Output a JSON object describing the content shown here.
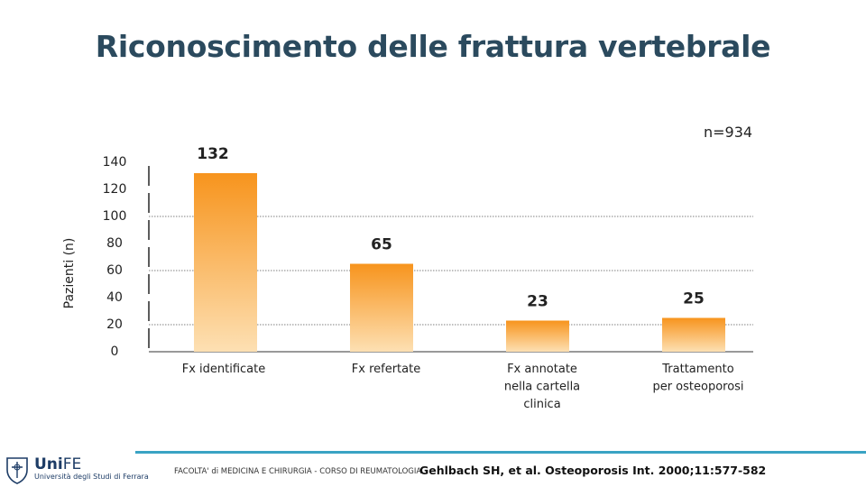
{
  "title": "Riconoscimento delle frattura vertebrale",
  "n_label": "n=934",
  "footer": {
    "logo_main_a": "Uni",
    "logo_main_b": "FE",
    "logo_sub": "Università degli Studi di Ferrara",
    "text": "FACOLTA' di MEDICINA E CHIRURGIA - CORSO DI REUMATOLOGIA",
    "citation": "Gehlbach SH, et al. Osteoporosis Int. 2000;11:577-582"
  },
  "colors": {
    "bar_top": "#f7941d",
    "bar_bottom": "#fde0b3",
    "title": "#2b4a5e",
    "accent_line": "#3aa3c4"
  },
  "chart_data": {
    "type": "bar",
    "ylabel": "Pazienti (n)",
    "ylim": [
      0,
      140
    ],
    "yticks": [
      0,
      20,
      40,
      60,
      80,
      100,
      120,
      140
    ],
    "grid": true,
    "categories": [
      [
        "Fx identificate"
      ],
      [
        "Fx refertate"
      ],
      [
        "Fx annotate",
        "nella cartella",
        "clinica"
      ],
      [
        "Trattamento",
        "per osteoporosi"
      ]
    ],
    "values": [
      132,
      65,
      23,
      25
    ],
    "data_labels": [
      "132",
      "65",
      "23",
      "25"
    ]
  }
}
